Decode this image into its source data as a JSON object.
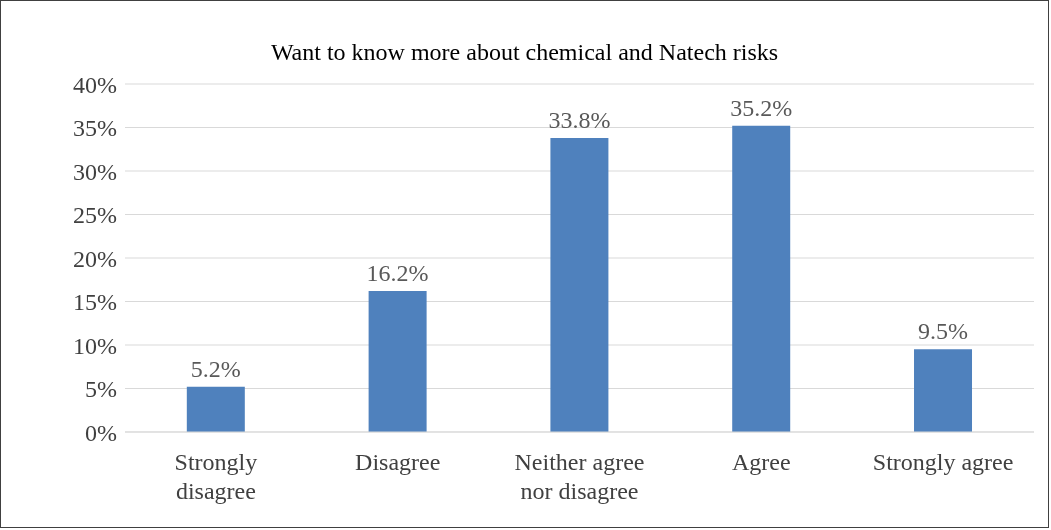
{
  "chart_data": {
    "type": "bar",
    "title": "Want to know more about chemical and Natech risks",
    "categories": [
      "Strongly disagree",
      "Disagree",
      "Neither agree nor disagree",
      "Agree",
      "Strongly agree"
    ],
    "values": [
      5.2,
      16.2,
      33.8,
      35.2,
      9.5
    ],
    "value_labels": [
      "5.2%",
      "16.2%",
      "33.8%",
      "35.2%",
      "9.5%"
    ],
    "color": "#4f81bd",
    "ylim": [
      0,
      40
    ],
    "yticks": [
      {
        "value": 0,
        "label": "0%"
      },
      {
        "value": 5,
        "label": "5%"
      },
      {
        "value": 10,
        "label": "10%"
      },
      {
        "value": 15,
        "label": "15%"
      },
      {
        "value": 20,
        "label": "20%"
      },
      {
        "value": 25,
        "label": "25%"
      },
      {
        "value": 30,
        "label": "30%"
      },
      {
        "value": 35,
        "label": "35%"
      },
      {
        "value": 40,
        "label": "40%"
      }
    ],
    "grid": "y"
  }
}
